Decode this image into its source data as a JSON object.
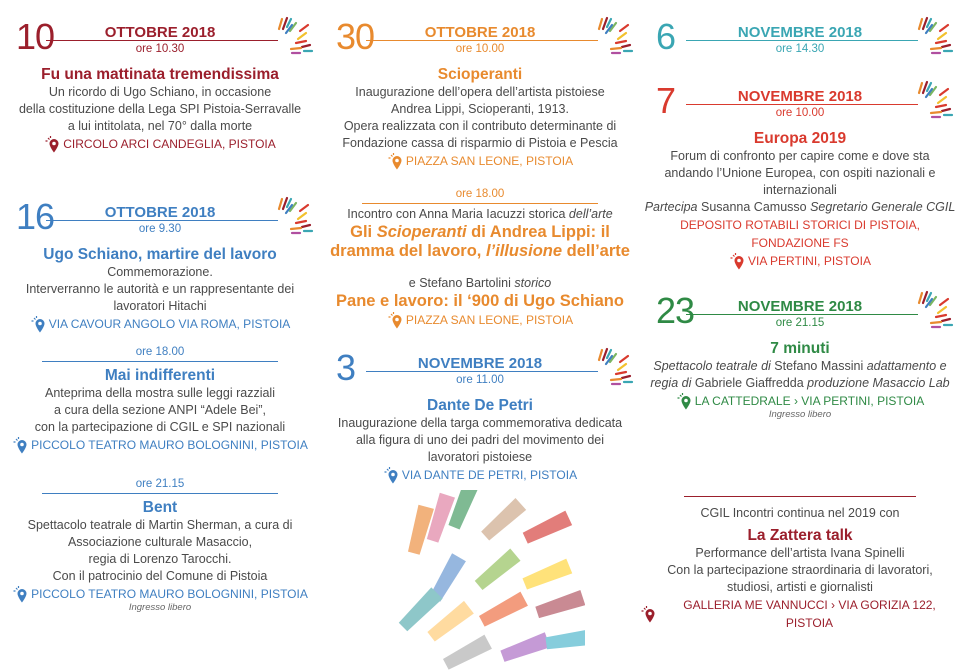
{
  "colors": {
    "dark_red": "#9b1f2c",
    "blue": "#3f7fc1",
    "orange": "#e88a2e",
    "teal": "#3aa6b3",
    "red": "#d93a2e",
    "green": "#2f8a45",
    "text": "#4a4a4a"
  },
  "stripe_colors": [
    "#f2b27c",
    "#e9a8bf",
    "#7fba93",
    "#dcc3ae",
    "#e27d7a",
    "#96b7df",
    "#b5d48f",
    "#ffe27a",
    "#8ec7c9",
    "#ffdba0",
    "#f39c7e",
    "#c98a93",
    "#c9c9c9",
    "#c59ad6",
    "#86cddc"
  ],
  "columns": [
    {
      "blocks": [
        {
          "type": "event",
          "color": "dark_red",
          "day": "10",
          "month": "OTTOBRE 2018",
          "time": "ore 10.30",
          "title": [
            {
              "text": "Fu una mattinata tremendissima"
            }
          ],
          "lines": [
            [
              {
                "text": "Un ricordo di Ugo Schiano, in occasione"
              }
            ],
            [
              {
                "text": "della costituzione della Lega SPI Pistoia-Serravalle"
              }
            ],
            [
              {
                "text": "a lui intitolata, nel 70° dalla morte"
              }
            ]
          ],
          "venue": "CIRCOLO ARCI CANDEGLIA, PISTOIA"
        },
        {
          "type": "event",
          "color": "blue",
          "day": "16",
          "month": "OTTOBRE 2018",
          "time": "ore 9.30",
          "title": [
            {
              "text": "Ugo Schiano, martire del lavoro"
            }
          ],
          "lines": [
            [
              {
                "text": "Commemorazione."
              }
            ],
            [
              {
                "text": "Interverranno le autorità e un rappresentante dei"
              }
            ],
            [
              {
                "text": "lavoratori Hitachi"
              }
            ]
          ],
          "venue": "VIA CAVOUR ANGOLO VIA ROMA, PISTOIA"
        },
        {
          "type": "session",
          "color": "blue",
          "time": "ore 18.00",
          "title": [
            {
              "text": "Mai indifferenti"
            }
          ],
          "lines": [
            [
              {
                "text": "Anteprima della mostra sulle leggi razziali"
              }
            ],
            [
              {
                "text": "a cura della sezione ANPI “Adele Bei”,"
              }
            ],
            [
              {
                "text": "con la partecipazione di CGIL e SPI nazionali"
              }
            ]
          ],
          "venue": "PICCOLO TEATRO MAURO BOLOGNINI, PISTOIA"
        },
        {
          "type": "session",
          "color": "blue",
          "time": "ore 21.15",
          "title": [
            {
              "text": "Bent"
            }
          ],
          "lines": [
            [
              {
                "text": "Spettacolo teatrale di Martin Sherman, a cura di"
              }
            ],
            [
              {
                "text": "Associazione culturale Masaccio,"
              }
            ],
            [
              {
                "text": "regia di Lorenzo Tarocchi."
              }
            ],
            [
              {
                "text": "Con il patrocinio del Comune di Pistoia"
              }
            ]
          ],
          "venue": "PICCOLO TEATRO MAURO BOLOGNINI, PISTOIA",
          "note": "Ingresso libero"
        }
      ]
    },
    {
      "blocks": [
        {
          "type": "event",
          "color": "orange",
          "day": "30",
          "month": "OTTOBRE 2018",
          "time": "ore 10.00",
          "title": [
            {
              "text": "Scioperanti"
            }
          ],
          "lines": [
            [
              {
                "text": "Inaugurazione dell’opera dell’artista pistoiese"
              }
            ],
            [
              {
                "text": "Andrea Lippi, Scioperanti, 1913."
              }
            ],
            [
              {
                "text": "Opera realizzata con il contributo determinante di"
              }
            ],
            [
              {
                "text": "Fondazione cassa di risparmio di Pistoia e Pescia"
              }
            ]
          ],
          "venue": "PIAZZA SAN LEONE, PISTOIA"
        },
        {
          "type": "session",
          "color": "orange",
          "time": "ore 18.00",
          "intro": [
            {
              "text": "Incontro con Anna Maria Iacuzzi storica "
            },
            {
              "text": "dell’arte",
              "italic": true
            }
          ],
          "title_lines": [
            [
              {
                "text": "Gli "
              },
              {
                "text": "Scioperanti",
                "italic": true
              },
              {
                "text": " di Andrea Lippi: il"
              }
            ],
            [
              {
                "text": "dramma del lavoro, "
              },
              {
                "text": "l’illusione",
                "italic": true
              },
              {
                "text": " dell’arte"
              }
            ]
          ],
          "intro2": [
            {
              "text": "e Stefano Bartolini "
            },
            {
              "text": "storico",
              "italic": true
            }
          ],
          "title2": [
            {
              "text": "Pane e lavoro: il ‘900 di Ugo Schiano"
            }
          ],
          "venue": "PIAZZA SAN LEONE, PISTOIA"
        },
        {
          "type": "event",
          "color": "blue",
          "day": "3",
          "month": "NOVEMBRE 2018",
          "time": "ore 11.00",
          "title": [
            {
              "text": "Dante De Petri"
            }
          ],
          "lines": [
            [
              {
                "text": "Inaugurazione della targa commemorativa dedicata"
              }
            ],
            [
              {
                "text": "alla figura di uno dei padri del movimento dei"
              }
            ],
            [
              {
                "text": "lavoratori pistoiese"
              }
            ]
          ],
          "venue": "VIA DANTE DE PETRI, PISTOIA"
        }
      ]
    },
    {
      "blocks": [
        {
          "type": "event",
          "color": "teal",
          "day": "6",
          "month": "NOVEMBRE 2018",
          "time": "ore 14.30"
        },
        {
          "type": "event",
          "color": "red",
          "day": "7",
          "month": "NOVEMBRE 2018",
          "time": "ore 10.00",
          "title": [
            {
              "text": "Europa 2019"
            }
          ],
          "lines": [
            [
              {
                "text": "Forum di confronto per capire come e dove sta"
              }
            ],
            [
              {
                "text": "andando l’Unione Europea, con ospiti nazionali e"
              }
            ],
            [
              {
                "text": "internazionali"
              }
            ],
            [
              {
                "text": "Partecipa",
                "italic": true
              },
              {
                "text": " Susanna Camusso "
              },
              {
                "text": "Segretario Generale CGIL",
                "italic": true
              }
            ]
          ],
          "subvenue": "DEPOSITO ROTABILI STORICI DI PISTOIA, FONDAZIONE FS",
          "venue": "VIA PERTINI, PISTOIA"
        },
        {
          "type": "event",
          "color": "green",
          "day": "23",
          "month": "NOVEMBRE 2018",
          "time": "ore 21.15",
          "title": [
            {
              "text": "7 minuti"
            }
          ],
          "lines": [
            [
              {
                "text": "Spettacolo teatrale di",
                "italic": true
              },
              {
                "text": " Stefano Massini "
              },
              {
                "text": "adattamento e",
                "italic": true
              }
            ],
            [
              {
                "text": "regia di",
                "italic": true
              },
              {
                "text": " Gabriele Giaffredda "
              },
              {
                "text": "produzione Masaccio Lab",
                "italic": true
              }
            ]
          ],
          "venue": "LA CATTEDRALE › VIA PERTINI, PISTOIA",
          "note": "Ingresso libero"
        },
        {
          "type": "closing",
          "color": "dark_red",
          "intro": [
            {
              "text": "CGIL Incontri continua nel 2019 con"
            }
          ],
          "title": [
            {
              "text": "La Zattera talk"
            }
          ],
          "lines": [
            [
              {
                "text": "Performance dell’artista Ivana Spinelli"
              }
            ],
            [
              {
                "text": "Con la partecipazione straordinaria di lavoratori,"
              }
            ],
            [
              {
                "text": "studiosi, artisti e giornalisti"
              }
            ]
          ],
          "venue": "GALLERIA ME VANNUCCI › VIA GORIZIA 122, PISTOIA"
        }
      ]
    }
  ]
}
